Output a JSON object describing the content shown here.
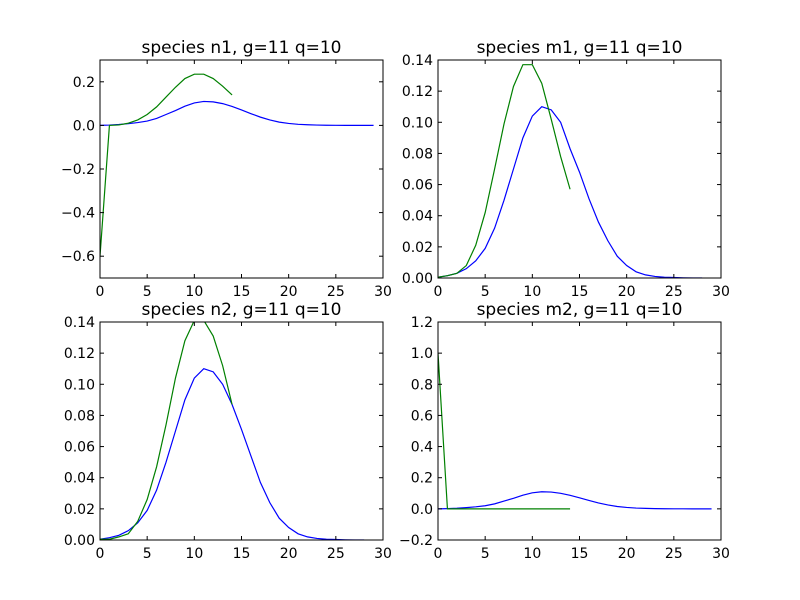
{
  "colors": {
    "series_blue": "#0000ff",
    "series_green": "#008000"
  },
  "chart_data": [
    {
      "type": "line",
      "title": "species n1, g=11 q=10",
      "xlim": [
        0,
        30
      ],
      "ylim": [
        -0.7,
        0.3
      ],
      "xticks": [
        0,
        5,
        10,
        15,
        20,
        25,
        30
      ],
      "yticks": [
        -0.6,
        -0.4,
        -0.2,
        0.0,
        0.2
      ],
      "xtick_labels": [
        "0",
        "5",
        "10",
        "15",
        "20",
        "25",
        "30"
      ],
      "ytick_labels": [
        "−0.6",
        "−0.4",
        "−0.2",
        "0.0",
        "0.2"
      ],
      "series": [
        {
          "color": "#0000ff",
          "x": [
            0,
            1,
            2,
            3,
            4,
            5,
            6,
            7,
            8,
            9,
            10,
            11,
            12,
            13,
            14,
            15,
            16,
            17,
            18,
            19,
            20,
            21,
            22,
            23,
            24,
            25,
            26,
            27,
            28,
            29
          ],
          "y": [
            0.0,
            0.0015,
            0.004,
            0.008,
            0.013,
            0.02,
            0.032,
            0.05,
            0.068,
            0.088,
            0.103,
            0.11,
            0.108,
            0.1,
            0.087,
            0.071,
            0.054,
            0.038,
            0.025,
            0.015,
            0.009,
            0.005,
            0.003,
            0.0015,
            0.0008,
            0.0004,
            0.0002,
            0.0001,
            0.0,
            0.0
          ]
        },
        {
          "color": "#008000",
          "x": [
            0,
            1,
            2,
            3,
            4,
            5,
            6,
            7,
            8,
            9,
            10,
            11,
            12,
            13,
            14
          ],
          "y": [
            -0.6,
            0.0,
            0.002,
            0.01,
            0.025,
            0.05,
            0.085,
            0.13,
            0.175,
            0.215,
            0.235,
            0.235,
            0.215,
            0.18,
            0.14
          ]
        }
      ]
    },
    {
      "type": "line",
      "title": "species m1, g=11 q=10",
      "xlim": [
        0,
        30
      ],
      "ylim": [
        0,
        0.14
      ],
      "xticks": [
        0,
        5,
        10,
        15,
        20,
        25,
        30
      ],
      "yticks": [
        0.0,
        0.02,
        0.04,
        0.06,
        0.08,
        0.1,
        0.12,
        0.14
      ],
      "xtick_labels": [
        "0",
        "5",
        "10",
        "15",
        "20",
        "25",
        "30"
      ],
      "ytick_labels": [
        "0.00",
        "0.02",
        "0.04",
        "0.06",
        "0.08",
        "0.10",
        "0.12",
        "0.14"
      ],
      "series": [
        {
          "color": "#0000ff",
          "x": [
            0,
            1,
            2,
            3,
            4,
            5,
            6,
            7,
            8,
            9,
            10,
            11,
            12,
            13,
            14,
            15,
            16,
            17,
            18,
            19,
            20,
            21,
            22,
            23,
            24,
            25,
            26,
            27,
            28
          ],
          "y": [
            0.0005,
            0.0015,
            0.003,
            0.006,
            0.011,
            0.019,
            0.032,
            0.05,
            0.07,
            0.09,
            0.104,
            0.11,
            0.108,
            0.1,
            0.083,
            0.068,
            0.051,
            0.036,
            0.024,
            0.014,
            0.008,
            0.004,
            0.002,
            0.001,
            0.0005,
            0.0003,
            0.0001,
            0.0,
            0.0
          ]
        },
        {
          "color": "#008000",
          "x": [
            0,
            1,
            2,
            3,
            4,
            5,
            6,
            7,
            8,
            9,
            10,
            11,
            12,
            13,
            14
          ],
          "y": [
            0.0005,
            0.0015,
            0.003,
            0.008,
            0.021,
            0.042,
            0.07,
            0.099,
            0.123,
            0.137,
            0.137,
            0.125,
            0.102,
            0.078,
            0.057
          ]
        }
      ]
    },
    {
      "type": "line",
      "title": "species n2, g=11 q=10",
      "xlim": [
        0,
        30
      ],
      "ylim": [
        0,
        0.14
      ],
      "xticks": [
        0,
        5,
        10,
        15,
        20,
        25,
        30
      ],
      "yticks": [
        0.0,
        0.02,
        0.04,
        0.06,
        0.08,
        0.1,
        0.12,
        0.14
      ],
      "xtick_labels": [
        "0",
        "5",
        "10",
        "15",
        "20",
        "25",
        "30"
      ],
      "ytick_labels": [
        "0.00",
        "0.02",
        "0.04",
        "0.06",
        "0.08",
        "0.10",
        "0.12",
        "0.14"
      ],
      "series": [
        {
          "color": "#0000ff",
          "x": [
            0,
            1,
            2,
            3,
            4,
            5,
            6,
            7,
            8,
            9,
            10,
            11,
            12,
            13,
            14,
            15,
            16,
            17,
            18,
            19,
            20,
            21,
            22,
            23,
            24,
            25,
            26,
            27,
            28
          ],
          "y": [
            0.0005,
            0.0015,
            0.003,
            0.006,
            0.011,
            0.019,
            0.032,
            0.05,
            0.07,
            0.09,
            0.104,
            0.11,
            0.108,
            0.1,
            0.087,
            0.071,
            0.054,
            0.037,
            0.024,
            0.014,
            0.008,
            0.004,
            0.002,
            0.001,
            0.0005,
            0.0003,
            0.0001,
            0.0,
            0.0
          ]
        },
        {
          "color": "#008000",
          "x": [
            0,
            1,
            2,
            3,
            4,
            5,
            6,
            7,
            8,
            9,
            10,
            11,
            12,
            13,
            14
          ],
          "y": [
            0.0005,
            0.0005,
            0.002,
            0.004,
            0.012,
            0.026,
            0.047,
            0.074,
            0.104,
            0.128,
            0.141,
            0.141,
            0.131,
            0.112,
            0.087
          ]
        }
      ]
    },
    {
      "type": "line",
      "title": "species m2, g=11 q=10",
      "xlim": [
        0,
        30
      ],
      "ylim": [
        -0.2,
        1.2
      ],
      "xticks": [
        0,
        5,
        10,
        15,
        20,
        25,
        30
      ],
      "yticks": [
        -0.2,
        0.0,
        0.2,
        0.4,
        0.6,
        0.8,
        1.0,
        1.2
      ],
      "xtick_labels": [
        "0",
        "5",
        "10",
        "15",
        "20",
        "25",
        "30"
      ],
      "ytick_labels": [
        "−0.2",
        "0.0",
        "0.2",
        "0.4",
        "0.6",
        "0.8",
        "1.0",
        "1.2"
      ],
      "series": [
        {
          "color": "#0000ff",
          "x": [
            0,
            1,
            2,
            3,
            4,
            5,
            6,
            7,
            8,
            9,
            10,
            11,
            12,
            13,
            14,
            15,
            16,
            17,
            18,
            19,
            20,
            21,
            22,
            23,
            24,
            25,
            26,
            27,
            28,
            29
          ],
          "y": [
            0.0,
            0.0015,
            0.004,
            0.008,
            0.013,
            0.02,
            0.032,
            0.05,
            0.068,
            0.088,
            0.103,
            0.11,
            0.108,
            0.1,
            0.087,
            0.071,
            0.054,
            0.038,
            0.025,
            0.015,
            0.009,
            0.005,
            0.003,
            0.0015,
            0.0008,
            0.0004,
            0.0002,
            0.0001,
            0.0,
            0.0
          ]
        },
        {
          "color": "#008000",
          "x": [
            0,
            1,
            2,
            3,
            4,
            5,
            6,
            7,
            8,
            9,
            10,
            11,
            12,
            13,
            14
          ],
          "y": [
            1.0,
            0.0,
            0.0,
            0.0,
            0.0,
            0.0,
            0.0,
            0.0,
            0.0,
            0.0,
            0.0,
            0.0,
            0.0,
            0.0,
            0.0
          ]
        }
      ]
    }
  ]
}
